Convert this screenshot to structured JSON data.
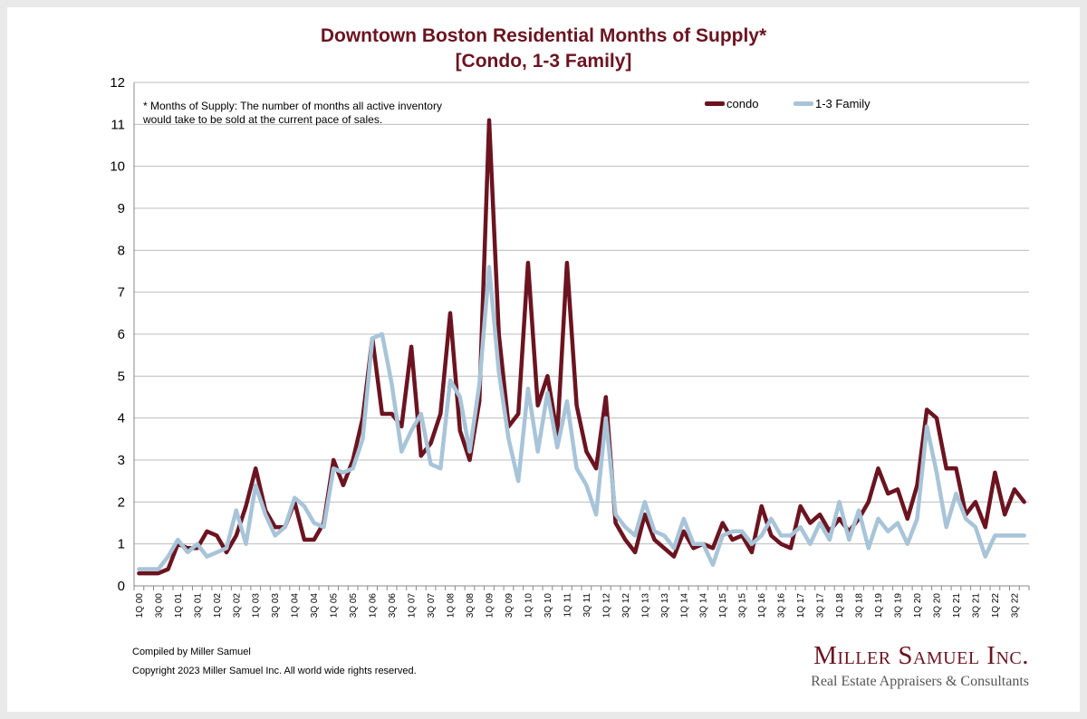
{
  "chart_data": {
    "type": "line",
    "title": "Downtown Boston Residential Months of Supply*",
    "subtitle": "[Condo, 1-3 Family]",
    "note": "* Months of Supply: The number of months all active inventory would take to be sold at the current pace of sales.",
    "ylim": [
      0,
      12
    ],
    "yticks": [
      0,
      1,
      2,
      3,
      4,
      5,
      6,
      7,
      8,
      9,
      10,
      11,
      12
    ],
    "grid": true,
    "legend_position": "top-right",
    "x": [
      "1Q 00",
      "2Q 00",
      "3Q 00",
      "4Q 00",
      "1Q 01",
      "2Q 01",
      "3Q 01",
      "4Q 01",
      "1Q 02",
      "2Q 02",
      "3Q 02",
      "4Q 02",
      "1Q 03",
      "2Q 03",
      "3Q 03",
      "4Q 03",
      "1Q 04",
      "2Q 04",
      "3Q 04",
      "4Q 04",
      "1Q 05",
      "2Q 05",
      "3Q 05",
      "4Q 05",
      "1Q 06",
      "2Q 06",
      "3Q 06",
      "4Q 06",
      "1Q 07",
      "2Q 07",
      "3Q 07",
      "4Q 07",
      "1Q 08",
      "2Q 08",
      "3Q 08",
      "4Q 08",
      "1Q 09",
      "2Q 09",
      "3Q 09",
      "4Q 09",
      "1Q 10",
      "2Q 10",
      "3Q 10",
      "4Q 10",
      "1Q 11",
      "2Q 11",
      "3Q 11",
      "4Q 11",
      "1Q 12",
      "2Q 12",
      "3Q 12",
      "4Q 12",
      "1Q 13",
      "2Q 13",
      "3Q 13",
      "4Q 13",
      "1Q 14",
      "2Q 14",
      "3Q 14",
      "4Q 14",
      "1Q 15",
      "2Q 15",
      "3Q 15",
      "4Q 15",
      "1Q 16",
      "2Q 16",
      "3Q 16",
      "4Q 16",
      "1Q 17",
      "2Q 17",
      "3Q 17",
      "4Q 17",
      "1Q 18",
      "2Q 18",
      "3Q 18",
      "4Q 18",
      "1Q 19",
      "2Q 19",
      "3Q 19",
      "4Q 19",
      "1Q 20",
      "2Q 20",
      "3Q 20",
      "4Q 20",
      "1Q 21",
      "2Q 21",
      "3Q 21",
      "4Q 21",
      "1Q 22",
      "2Q 22",
      "3Q 22",
      "4Q 22"
    ],
    "x_tick_labels": [
      "1Q 00",
      "3Q 00",
      "1Q 01",
      "3Q 01",
      "1Q 02",
      "3Q 02",
      "1Q 03",
      "3Q 03",
      "1Q 04",
      "3Q 04",
      "1Q 05",
      "3Q 05",
      "1Q 06",
      "3Q 06",
      "1Q 07",
      "3Q 07",
      "1Q 08",
      "3Q 08",
      "1Q 09",
      "3Q 09",
      "1Q 10",
      "3Q 10",
      "1Q 11",
      "3Q 11",
      "1Q 12",
      "3Q 12",
      "1Q 13",
      "3Q 13",
      "1Q 14",
      "3Q 14",
      "1Q 15",
      "3Q 15",
      "1Q 16",
      "3Q 16",
      "1Q 17",
      "3Q 17",
      "1Q 18",
      "3Q 18",
      "1Q 19",
      "3Q 19",
      "1Q 20",
      "3Q 20",
      "1Q 21",
      "3Q 21",
      "1Q 22",
      "3Q 22"
    ],
    "series": [
      {
        "name": "condo",
        "color": "#6b1420",
        "values": [
          0.3,
          0.3,
          0.3,
          0.4,
          1.0,
          0.9,
          0.9,
          1.3,
          1.2,
          0.8,
          1.2,
          1.9,
          2.8,
          1.8,
          1.4,
          1.4,
          2.0,
          1.1,
          1.1,
          1.5,
          3.0,
          2.4,
          3.0,
          4.0,
          5.9,
          4.1,
          4.1,
          3.8,
          5.7,
          3.1,
          3.4,
          4.1,
          6.5,
          3.7,
          3.0,
          4.4,
          11.1,
          6.0,
          3.8,
          4.1,
          7.7,
          4.3,
          5.0,
          3.6,
          7.7,
          4.3,
          3.2,
          2.8,
          4.5,
          1.5,
          1.1,
          0.8,
          1.7,
          1.1,
          0.9,
          0.7,
          1.3,
          0.9,
          1.0,
          0.9,
          1.5,
          1.1,
          1.2,
          0.8,
          1.9,
          1.2,
          1.0,
          0.9,
          1.9,
          1.5,
          1.7,
          1.3,
          1.6,
          1.3,
          1.6,
          2.0,
          2.8,
          2.2,
          2.3,
          1.6,
          2.4,
          4.2,
          4.0,
          2.8,
          2.8,
          1.7,
          2.0,
          1.4,
          2.7,
          1.7,
          2.3,
          2.0
        ]
      },
      {
        "name": "1-3 Family",
        "color": "#a8c4d8",
        "values": [
          0.4,
          0.4,
          0.4,
          0.7,
          1.1,
          0.8,
          1.0,
          0.7,
          0.8,
          0.9,
          1.8,
          1.0,
          2.4,
          1.7,
          1.2,
          1.4,
          2.1,
          1.9,
          1.5,
          1.4,
          2.8,
          2.7,
          2.8,
          3.5,
          5.9,
          6.0,
          4.8,
          3.2,
          3.7,
          4.1,
          2.9,
          2.8,
          4.9,
          4.5,
          3.2,
          4.8,
          7.6,
          5.1,
          3.5,
          2.5,
          4.7,
          3.2,
          4.6,
          3.3,
          4.4,
          2.8,
          2.4,
          1.7,
          4.0,
          1.7,
          1.4,
          1.2,
          2.0,
          1.3,
          1.2,
          0.9,
          1.6,
          1.0,
          1.0,
          0.5,
          1.2,
          1.3,
          1.3,
          1.0,
          1.2,
          1.6,
          1.2,
          1.2,
          1.4,
          1.0,
          1.5,
          1.1,
          2.0,
          1.1,
          1.8,
          0.9,
          1.6,
          1.3,
          1.5,
          1.0,
          1.6,
          3.8,
          2.7,
          1.4,
          2.2,
          1.6,
          1.4,
          0.7,
          1.2,
          1.2,
          1.2,
          1.2
        ]
      }
    ]
  },
  "footer": {
    "compiled": "Compiled by Miller Samuel",
    "copyright": "Copyright 2023 Miller Samuel Inc.  All world wide rights reserved."
  },
  "logo": {
    "name": "Miller Samuel Inc.",
    "tagline": "Real Estate Appraisers & Consultants"
  }
}
